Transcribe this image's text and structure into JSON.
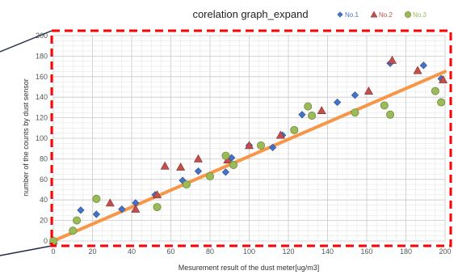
{
  "chart_data": {
    "type": "scatter",
    "title": "corelation graph_expand",
    "xlabel": "Mesurement result of the dust meter[ug/m3]",
    "ylabel": "number of the counts by dust sensor",
    "xlim": [
      0,
      200
    ],
    "ylim": [
      0,
      200
    ],
    "x_ticks": [
      "0",
      "20",
      "40",
      "60",
      "80",
      "100",
      "120",
      "140",
      "160",
      "180",
      "200"
    ],
    "y_ticks": [
      "0",
      "20",
      "40",
      "60",
      "80",
      "100",
      "120",
      "140",
      "160",
      "180",
      "200"
    ],
    "grid": true,
    "legend_position": "top-right",
    "series": [
      {
        "name": "No.1",
        "marker": "diamond",
        "color": "#4472C4",
        "points": [
          [
            0,
            0
          ],
          [
            14,
            30
          ],
          [
            22,
            26
          ],
          [
            35,
            31
          ],
          [
            42,
            37
          ],
          [
            52,
            45
          ],
          [
            66,
            59
          ],
          [
            74,
            68
          ],
          [
            88,
            67
          ],
          [
            91,
            81
          ],
          [
            100,
            93
          ],
          [
            112,
            91
          ],
          [
            117,
            103
          ],
          [
            127,
            123
          ],
          [
            145,
            135
          ],
          [
            154,
            142
          ],
          [
            172,
            173
          ],
          [
            189,
            171
          ],
          [
            198,
            158
          ]
        ]
      },
      {
        "name": "No.2",
        "marker": "triangle",
        "color": "#C0504D",
        "points": [
          [
            0,
            0
          ],
          [
            29,
            37
          ],
          [
            42,
            31
          ],
          [
            53,
            45
          ],
          [
            57,
            73
          ],
          [
            65,
            72
          ],
          [
            74,
            80
          ],
          [
            89,
            79
          ],
          [
            100,
            93
          ],
          [
            116,
            103
          ],
          [
            137,
            127
          ],
          [
            161,
            146
          ],
          [
            173,
            176
          ],
          [
            186,
            166
          ],
          [
            199,
            157
          ]
        ]
      },
      {
        "name": "No.3",
        "marker": "circle",
        "color": "#9BBB59",
        "points": [
          [
            0,
            0
          ],
          [
            10,
            10
          ],
          [
            12,
            20
          ],
          [
            22,
            41
          ],
          [
            53,
            33
          ],
          [
            68,
            55
          ],
          [
            80,
            63
          ],
          [
            88,
            83
          ],
          [
            92,
            74
          ],
          [
            106,
            93
          ],
          [
            123,
            108
          ],
          [
            130,
            131
          ],
          [
            132,
            122
          ],
          [
            154,
            125
          ],
          [
            169,
            132
          ],
          [
            172,
            123
          ],
          [
            195,
            146
          ],
          [
            198,
            135
          ]
        ]
      }
    ],
    "trendline": {
      "color": "#F79646",
      "points": [
        [
          0,
          0
        ],
        [
          200,
          165
        ]
      ]
    },
    "highlight_box_color": "#FF0000"
  }
}
